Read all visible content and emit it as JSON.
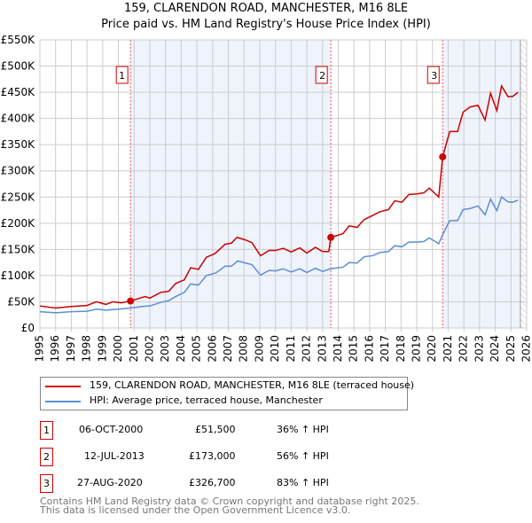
{
  "chart_data": {
    "type": "line",
    "title": "159, CLARENDON ROAD, MANCHESTER, M16 8LE",
    "subtitle": "Price paid vs. HM Land Registry's House Price Index (HPI)",
    "xlim": [
      1995,
      2026
    ],
    "ylim": [
      0,
      550000
    ],
    "x_ticks": [
      "1995",
      "1996",
      "1997",
      "1998",
      "1999",
      "2000",
      "2001",
      "2002",
      "2003",
      "2004",
      "2005",
      "2006",
      "2007",
      "2008",
      "2009",
      "2010",
      "2011",
      "2012",
      "2013",
      "2014",
      "2015",
      "2016",
      "2017",
      "2018",
      "2019",
      "2020",
      "2021",
      "2022",
      "2023",
      "2024",
      "2025",
      "2026"
    ],
    "y_ticks": [
      {
        "v": 0,
        "label": "£0"
      },
      {
        "v": 50000,
        "label": "£50K"
      },
      {
        "v": 100000,
        "label": "£100K"
      },
      {
        "v": 150000,
        "label": "£150K"
      },
      {
        "v": 200000,
        "label": "£200K"
      },
      {
        "v": 250000,
        "label": "£250K"
      },
      {
        "v": 300000,
        "label": "£300K"
      },
      {
        "v": 350000,
        "label": "£350K"
      },
      {
        "v": 400000,
        "label": "£400K"
      },
      {
        "v": 450000,
        "label": "£450K"
      },
      {
        "v": 500000,
        "label": "£500K"
      },
      {
        "v": 550000,
        "label": "£550K"
      }
    ],
    "grid": true,
    "series": [
      {
        "name": "159, CLARENDON ROAD, MANCHESTER, M16 8LE (terraced house)",
        "color": "#cc0000",
        "points": [
          [
            1995,
            42
          ],
          [
            1996,
            38
          ],
          [
            1997,
            41
          ],
          [
            1998,
            43
          ],
          [
            1998.6,
            50
          ],
          [
            1999.2,
            45
          ],
          [
            1999.65,
            50
          ],
          [
            2000.2,
            48
          ],
          [
            2000.77,
            51.5
          ],
          [
            2001.7,
            60
          ],
          [
            2002,
            57
          ],
          [
            2002.7,
            68
          ],
          [
            2003.2,
            70
          ],
          [
            2003.65,
            85
          ],
          [
            2004.2,
            92
          ],
          [
            2004.6,
            115
          ],
          [
            2005.1,
            112
          ],
          [
            2005.6,
            135
          ],
          [
            2006.15,
            142
          ],
          [
            2006.8,
            160
          ],
          [
            2007.2,
            162
          ],
          [
            2007.55,
            173
          ],
          [
            2008.1,
            168
          ],
          [
            2008.5,
            163
          ],
          [
            2009.05,
            138
          ],
          [
            2009.6,
            148
          ],
          [
            2010,
            148
          ],
          [
            2010.5,
            152
          ],
          [
            2011,
            145
          ],
          [
            2011.55,
            153
          ],
          [
            2012,
            143
          ],
          [
            2012.55,
            154
          ],
          [
            2013,
            146
          ],
          [
            2013.4,
            146
          ],
          [
            2013.53,
            173
          ],
          [
            2014.3,
            180
          ],
          [
            2014.7,
            195
          ],
          [
            2015.2,
            192
          ],
          [
            2015.65,
            207
          ],
          [
            2016.2,
            215
          ],
          [
            2016.65,
            222
          ],
          [
            2017.2,
            226
          ],
          [
            2017.6,
            243
          ],
          [
            2018.05,
            240
          ],
          [
            2018.5,
            255
          ],
          [
            2019,
            256
          ],
          [
            2019.45,
            258
          ],
          [
            2019.8,
            267
          ],
          [
            2020.4,
            250
          ],
          [
            2020.65,
            326.7
          ],
          [
            2021.1,
            375
          ],
          [
            2021.6,
            375
          ],
          [
            2021.95,
            412
          ],
          [
            2022.4,
            422
          ],
          [
            2022.9,
            425
          ],
          [
            2023.35,
            397
          ],
          [
            2023.7,
            448
          ],
          [
            2024.1,
            415
          ],
          [
            2024.4,
            462
          ],
          [
            2024.8,
            442
          ],
          [
            2025.1,
            442
          ],
          [
            2025.45,
            450
          ]
        ]
      },
      {
        "name": "HPI: Average price, terraced house, Manchester",
        "color": "#5b8fd4",
        "points": [
          [
            1995,
            31
          ],
          [
            1996,
            29
          ],
          [
            1997,
            31
          ],
          [
            1998,
            32
          ],
          [
            1998.6,
            36
          ],
          [
            1999.2,
            34
          ],
          [
            2000,
            36
          ],
          [
            2000.77,
            38
          ],
          [
            2001.5,
            41
          ],
          [
            2002,
            42
          ],
          [
            2002.7,
            49
          ],
          [
            2003.2,
            52
          ],
          [
            2003.65,
            60
          ],
          [
            2004.2,
            68
          ],
          [
            2004.6,
            84
          ],
          [
            2005.1,
            82
          ],
          [
            2005.6,
            100
          ],
          [
            2006.2,
            105
          ],
          [
            2006.8,
            118
          ],
          [
            2007.2,
            118
          ],
          [
            2007.6,
            128
          ],
          [
            2008.1,
            124
          ],
          [
            2008.5,
            121
          ],
          [
            2009.05,
            101
          ],
          [
            2009.6,
            110
          ],
          [
            2010,
            109
          ],
          [
            2010.5,
            113
          ],
          [
            2011,
            107
          ],
          [
            2011.55,
            113
          ],
          [
            2012,
            106
          ],
          [
            2012.55,
            114
          ],
          [
            2013,
            108
          ],
          [
            2013.5,
            113
          ],
          [
            2014.3,
            116
          ],
          [
            2014.7,
            125
          ],
          [
            2015.2,
            124
          ],
          [
            2015.65,
            136
          ],
          [
            2016.2,
            138
          ],
          [
            2016.65,
            144
          ],
          [
            2017.2,
            146
          ],
          [
            2017.6,
            157
          ],
          [
            2018.05,
            155
          ],
          [
            2018.5,
            164
          ],
          [
            2019,
            164
          ],
          [
            2019.45,
            165
          ],
          [
            2019.8,
            172
          ],
          [
            2020.4,
            161
          ],
          [
            2020.65,
            178
          ],
          [
            2021.1,
            205
          ],
          [
            2021.6,
            205
          ],
          [
            2021.95,
            226
          ],
          [
            2022.4,
            228
          ],
          [
            2022.9,
            233
          ],
          [
            2023.35,
            216
          ],
          [
            2023.7,
            246
          ],
          [
            2024.1,
            224
          ],
          [
            2024.4,
            250
          ],
          [
            2024.8,
            241
          ],
          [
            2025.1,
            240
          ],
          [
            2025.45,
            244
          ]
        ]
      }
    ],
    "value_unit": "thousands GBP",
    "sales": [
      {
        "id": "1",
        "x": 2000.77,
        "value": 51.5
      },
      {
        "id": "2",
        "x": 2013.53,
        "value": 173
      },
      {
        "id": "3",
        "x": 2020.65,
        "value": 326.7
      }
    ],
    "shaded_ranges": [
      [
        2000.77,
        2013.53
      ],
      [
        2020.65,
        2025.6
      ]
    ],
    "hatched_from": 2025.6
  },
  "legend": [
    {
      "label": "159, CLARENDON ROAD, MANCHESTER, M16 8LE (terraced house)",
      "color": "#cc0000"
    },
    {
      "label": "HPI: Average price, terraced house, Manchester",
      "color": "#5b8fd4"
    }
  ],
  "table": [
    {
      "num": "1",
      "date": "06-OCT-2000",
      "price": "£51,500",
      "hpi": "36% ↑ HPI"
    },
    {
      "num": "2",
      "date": "12-JUL-2013",
      "price": "£173,000",
      "hpi": "56% ↑ HPI"
    },
    {
      "num": "3",
      "date": "27-AUG-2020",
      "price": "£326,700",
      "hpi": "83% ↑ HPI"
    }
  ],
  "footer": {
    "line1": "Contains HM Land Registry data © Crown copyright and database right 2025.",
    "line2": "This data is licensed under the Open Government Licence v3.0."
  }
}
